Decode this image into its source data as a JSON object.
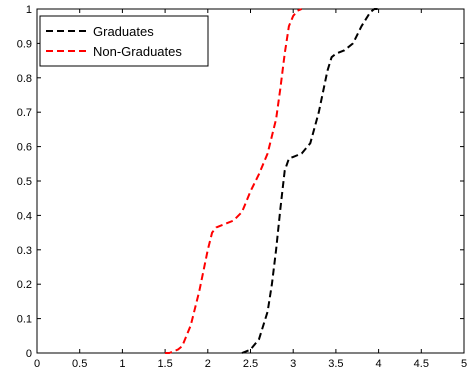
{
  "chart_data": {
    "type": "line",
    "title": "",
    "xlabel": "",
    "ylabel": "",
    "xlim": [
      0,
      5
    ],
    "ylim": [
      0,
      1
    ],
    "xticks": [
      "0",
      "0.5",
      "1",
      "1.5",
      "2",
      "2.5",
      "3",
      "3.5",
      "4",
      "4.5",
      "5"
    ],
    "yticks": [
      "0",
      "0.1",
      "0.2",
      "0.3",
      "0.4",
      "0.5",
      "0.6",
      "0.7",
      "0.8",
      "0.9",
      "1"
    ],
    "grid": false,
    "legend_position": "top-left",
    "series": [
      {
        "name": "Graduates",
        "color": "#000000",
        "style": "dashed",
        "x": [
          2.4,
          2.5,
          2.6,
          2.7,
          2.75,
          2.8,
          2.85,
          2.9,
          2.95,
          3.0,
          3.1,
          3.2,
          3.3,
          3.4,
          3.45,
          3.5,
          3.6,
          3.7,
          3.8,
          3.85,
          3.9,
          3.95,
          4.0
        ],
        "y": [
          0.0,
          0.01,
          0.04,
          0.12,
          0.2,
          0.3,
          0.42,
          0.53,
          0.565,
          0.57,
          0.58,
          0.61,
          0.7,
          0.82,
          0.86,
          0.87,
          0.88,
          0.9,
          0.95,
          0.97,
          0.99,
          1.0,
          1.0
        ]
      },
      {
        "name": "Non-Graduates",
        "color": "#ff0000",
        "style": "dashed",
        "x": [
          1.5,
          1.55,
          1.6,
          1.65,
          1.7,
          1.8,
          1.9,
          2.0,
          2.05,
          2.1,
          2.15,
          2.2,
          2.3,
          2.4,
          2.5,
          2.6,
          2.7,
          2.8,
          2.85,
          2.9,
          2.95,
          3.0,
          3.05,
          3.1
        ],
        "y": [
          0.0,
          0.0,
          0.005,
          0.01,
          0.02,
          0.08,
          0.18,
          0.3,
          0.35,
          0.365,
          0.37,
          0.375,
          0.385,
          0.41,
          0.47,
          0.52,
          0.58,
          0.68,
          0.77,
          0.87,
          0.95,
          0.98,
          0.995,
          1.0
        ]
      }
    ]
  }
}
